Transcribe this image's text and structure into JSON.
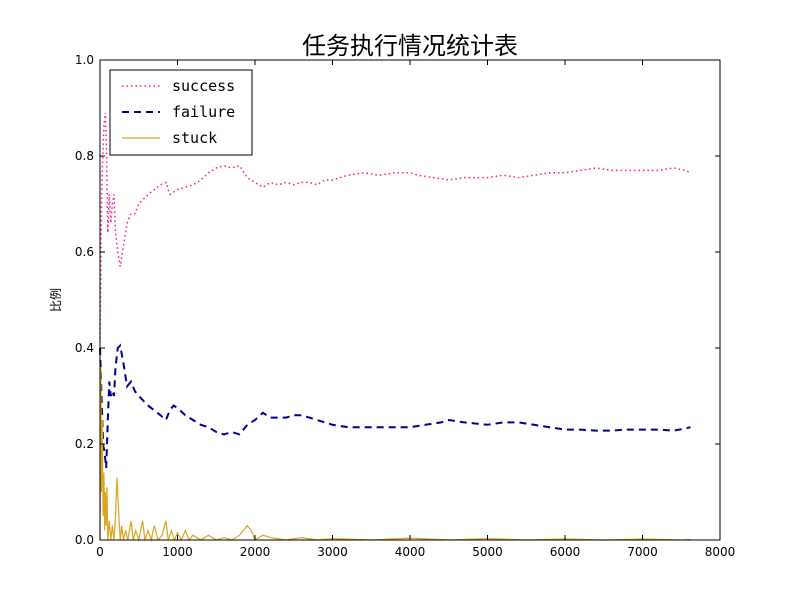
{
  "chart_data": {
    "type": "line",
    "title": "任务执行情况统计表",
    "xlabel": "",
    "ylabel": "比例",
    "xlim": [
      0,
      8000
    ],
    "ylim": [
      0,
      1.0
    ],
    "x_ticks": [
      "0",
      "1000",
      "2000",
      "3000",
      "4000",
      "5000",
      "6000",
      "7000",
      "8000"
    ],
    "y_ticks": [
      "0.0",
      "0.2",
      "0.4",
      "0.6",
      "0.8",
      "1.0"
    ],
    "grid": false,
    "legend_position": "top-left",
    "series": [
      {
        "name": "success",
        "color": "#ff1493",
        "style": "dotted",
        "points": [
          [
            0,
            0.42
          ],
          [
            10,
            0.55
          ],
          [
            20,
            0.7
          ],
          [
            35,
            0.8
          ],
          [
            50,
            0.86
          ],
          [
            60,
            0.88
          ],
          [
            70,
            0.89
          ],
          [
            80,
            0.84
          ],
          [
            100,
            0.64
          ],
          [
            120,
            0.72
          ],
          [
            140,
            0.66
          ],
          [
            160,
            0.7
          ],
          [
            180,
            0.72
          ],
          [
            200,
            0.64
          ],
          [
            230,
            0.6
          ],
          [
            260,
            0.57
          ],
          [
            300,
            0.61
          ],
          [
            350,
            0.66
          ],
          [
            400,
            0.68
          ],
          [
            450,
            0.68
          ],
          [
            500,
            0.7
          ],
          [
            560,
            0.71
          ],
          [
            620,
            0.72
          ],
          [
            700,
            0.73
          ],
          [
            780,
            0.74
          ],
          [
            850,
            0.745
          ],
          [
            900,
            0.72
          ],
          [
            1000,
            0.73
          ],
          [
            1100,
            0.735
          ],
          [
            1200,
            0.74
          ],
          [
            1300,
            0.75
          ],
          [
            1400,
            0.765
          ],
          [
            1500,
            0.775
          ],
          [
            1600,
            0.78
          ],
          [
            1700,
            0.775
          ],
          [
            1800,
            0.78
          ],
          [
            1900,
            0.755
          ],
          [
            2000,
            0.745
          ],
          [
            2100,
            0.735
          ],
          [
            2200,
            0.745
          ],
          [
            2300,
            0.74
          ],
          [
            2400,
            0.745
          ],
          [
            2500,
            0.74
          ],
          [
            2600,
            0.745
          ],
          [
            2700,
            0.745
          ],
          [
            2800,
            0.74
          ],
          [
            2900,
            0.75
          ],
          [
            3000,
            0.75
          ],
          [
            3200,
            0.76
          ],
          [
            3400,
            0.765
          ],
          [
            3600,
            0.76
          ],
          [
            3800,
            0.765
          ],
          [
            4000,
            0.765
          ],
          [
            4100,
            0.76
          ],
          [
            4300,
            0.755
          ],
          [
            4500,
            0.75
          ],
          [
            4700,
            0.755
          ],
          [
            5000,
            0.755
          ],
          [
            5200,
            0.76
          ],
          [
            5400,
            0.755
          ],
          [
            5600,
            0.76
          ],
          [
            5800,
            0.765
          ],
          [
            6000,
            0.765
          ],
          [
            6200,
            0.77
          ],
          [
            6400,
            0.775
          ],
          [
            6600,
            0.77
          ],
          [
            6800,
            0.77
          ],
          [
            7000,
            0.77
          ],
          [
            7200,
            0.77
          ],
          [
            7400,
            0.775
          ],
          [
            7550,
            0.77
          ],
          [
            7620,
            0.765
          ]
        ]
      },
      {
        "name": "failure",
        "color": "#00008b",
        "style": "dashed",
        "points": [
          [
            0,
            0.4
          ],
          [
            20,
            0.3
          ],
          [
            40,
            0.2
          ],
          [
            60,
            0.18
          ],
          [
            80,
            0.15
          ],
          [
            100,
            0.25
          ],
          [
            120,
            0.33
          ],
          [
            140,
            0.3
          ],
          [
            160,
            0.31
          ],
          [
            180,
            0.3
          ],
          [
            200,
            0.36
          ],
          [
            230,
            0.4
          ],
          [
            260,
            0.405
          ],
          [
            300,
            0.37
          ],
          [
            350,
            0.32
          ],
          [
            400,
            0.33
          ],
          [
            450,
            0.31
          ],
          [
            500,
            0.3
          ],
          [
            560,
            0.29
          ],
          [
            620,
            0.28
          ],
          [
            700,
            0.27
          ],
          [
            780,
            0.26
          ],
          [
            850,
            0.25
          ],
          [
            900,
            0.27
          ],
          [
            950,
            0.28
          ],
          [
            1000,
            0.275
          ],
          [
            1100,
            0.26
          ],
          [
            1200,
            0.25
          ],
          [
            1300,
            0.24
          ],
          [
            1400,
            0.235
          ],
          [
            1500,
            0.225
          ],
          [
            1600,
            0.22
          ],
          [
            1700,
            0.225
          ],
          [
            1800,
            0.22
          ],
          [
            1900,
            0.24
          ],
          [
            2000,
            0.25
          ],
          [
            2100,
            0.265
          ],
          [
            2200,
            0.255
          ],
          [
            2300,
            0.255
          ],
          [
            2400,
            0.255
          ],
          [
            2500,
            0.26
          ],
          [
            2600,
            0.26
          ],
          [
            2700,
            0.255
          ],
          [
            2800,
            0.25
          ],
          [
            2900,
            0.245
          ],
          [
            3000,
            0.24
          ],
          [
            3200,
            0.235
          ],
          [
            3400,
            0.235
          ],
          [
            3600,
            0.235
          ],
          [
            3800,
            0.235
          ],
          [
            4000,
            0.235
          ],
          [
            4200,
            0.24
          ],
          [
            4400,
            0.245
          ],
          [
            4500,
            0.25
          ],
          [
            4700,
            0.245
          ],
          [
            5000,
            0.24
          ],
          [
            5200,
            0.245
          ],
          [
            5400,
            0.245
          ],
          [
            5600,
            0.24
          ],
          [
            5800,
            0.235
          ],
          [
            6000,
            0.23
          ],
          [
            6200,
            0.23
          ],
          [
            6400,
            0.228
          ],
          [
            6600,
            0.228
          ],
          [
            6800,
            0.23
          ],
          [
            7000,
            0.23
          ],
          [
            7200,
            0.23
          ],
          [
            7400,
            0.228
          ],
          [
            7550,
            0.232
          ],
          [
            7620,
            0.235
          ]
        ]
      },
      {
        "name": "stuck",
        "color": "#daa520",
        "style": "solid",
        "points": [
          [
            0,
            0.0
          ],
          [
            10,
            0.36
          ],
          [
            20,
            0.1
          ],
          [
            30,
            0.25
          ],
          [
            40,
            0.05
          ],
          [
            50,
            0.14
          ],
          [
            60,
            0.02
          ],
          [
            70,
            0.1
          ],
          [
            80,
            0.03
          ],
          [
            90,
            0.11
          ],
          [
            100,
            0.0
          ],
          [
            120,
            0.04
          ],
          [
            140,
            0.0
          ],
          [
            160,
            0.03
          ],
          [
            180,
            0.0
          ],
          [
            200,
            0.05
          ],
          [
            220,
            0.13
          ],
          [
            240,
            0.06
          ],
          [
            260,
            0.0
          ],
          [
            280,
            0.03
          ],
          [
            300,
            0.0
          ],
          [
            330,
            0.02
          ],
          [
            360,
            0.0
          ],
          [
            400,
            0.04
          ],
          [
            430,
            0.0
          ],
          [
            460,
            0.02
          ],
          [
            500,
            0.0
          ],
          [
            550,
            0.04
          ],
          [
            580,
            0.0
          ],
          [
            620,
            0.02
          ],
          [
            660,
            0.0
          ],
          [
            700,
            0.03
          ],
          [
            750,
            0.0
          ],
          [
            800,
            0.01
          ],
          [
            850,
            0.04
          ],
          [
            880,
            0.0
          ],
          [
            920,
            0.02
          ],
          [
            960,
            0.0
          ],
          [
            1000,
            0.015
          ],
          [
            1050,
            0.0
          ],
          [
            1100,
            0.02
          ],
          [
            1150,
            0.0
          ],
          [
            1200,
            0.01
          ],
          [
            1300,
            0.0
          ],
          [
            1400,
            0.01
          ],
          [
            1500,
            0.0
          ],
          [
            1600,
            0.005
          ],
          [
            1700,
            0.0
          ],
          [
            1800,
            0.01
          ],
          [
            1850,
            0.02
          ],
          [
            1900,
            0.03
          ],
          [
            1950,
            0.02
          ],
          [
            2000,
            0.0
          ],
          [
            2100,
            0.01
          ],
          [
            2200,
            0.005
          ],
          [
            2400,
            0.0
          ],
          [
            2600,
            0.005
          ],
          [
            2800,
            0.0
          ],
          [
            3000,
            0.003
          ],
          [
            3500,
            0.0
          ],
          [
            4000,
            0.004
          ],
          [
            4500,
            0.0
          ],
          [
            5000,
            0.003
          ],
          [
            5500,
            0.0
          ],
          [
            6000,
            0.002
          ],
          [
            6500,
            0.0
          ],
          [
            7000,
            0.002
          ],
          [
            7500,
            0.0
          ],
          [
            7620,
            0.001
          ]
        ]
      }
    ]
  }
}
